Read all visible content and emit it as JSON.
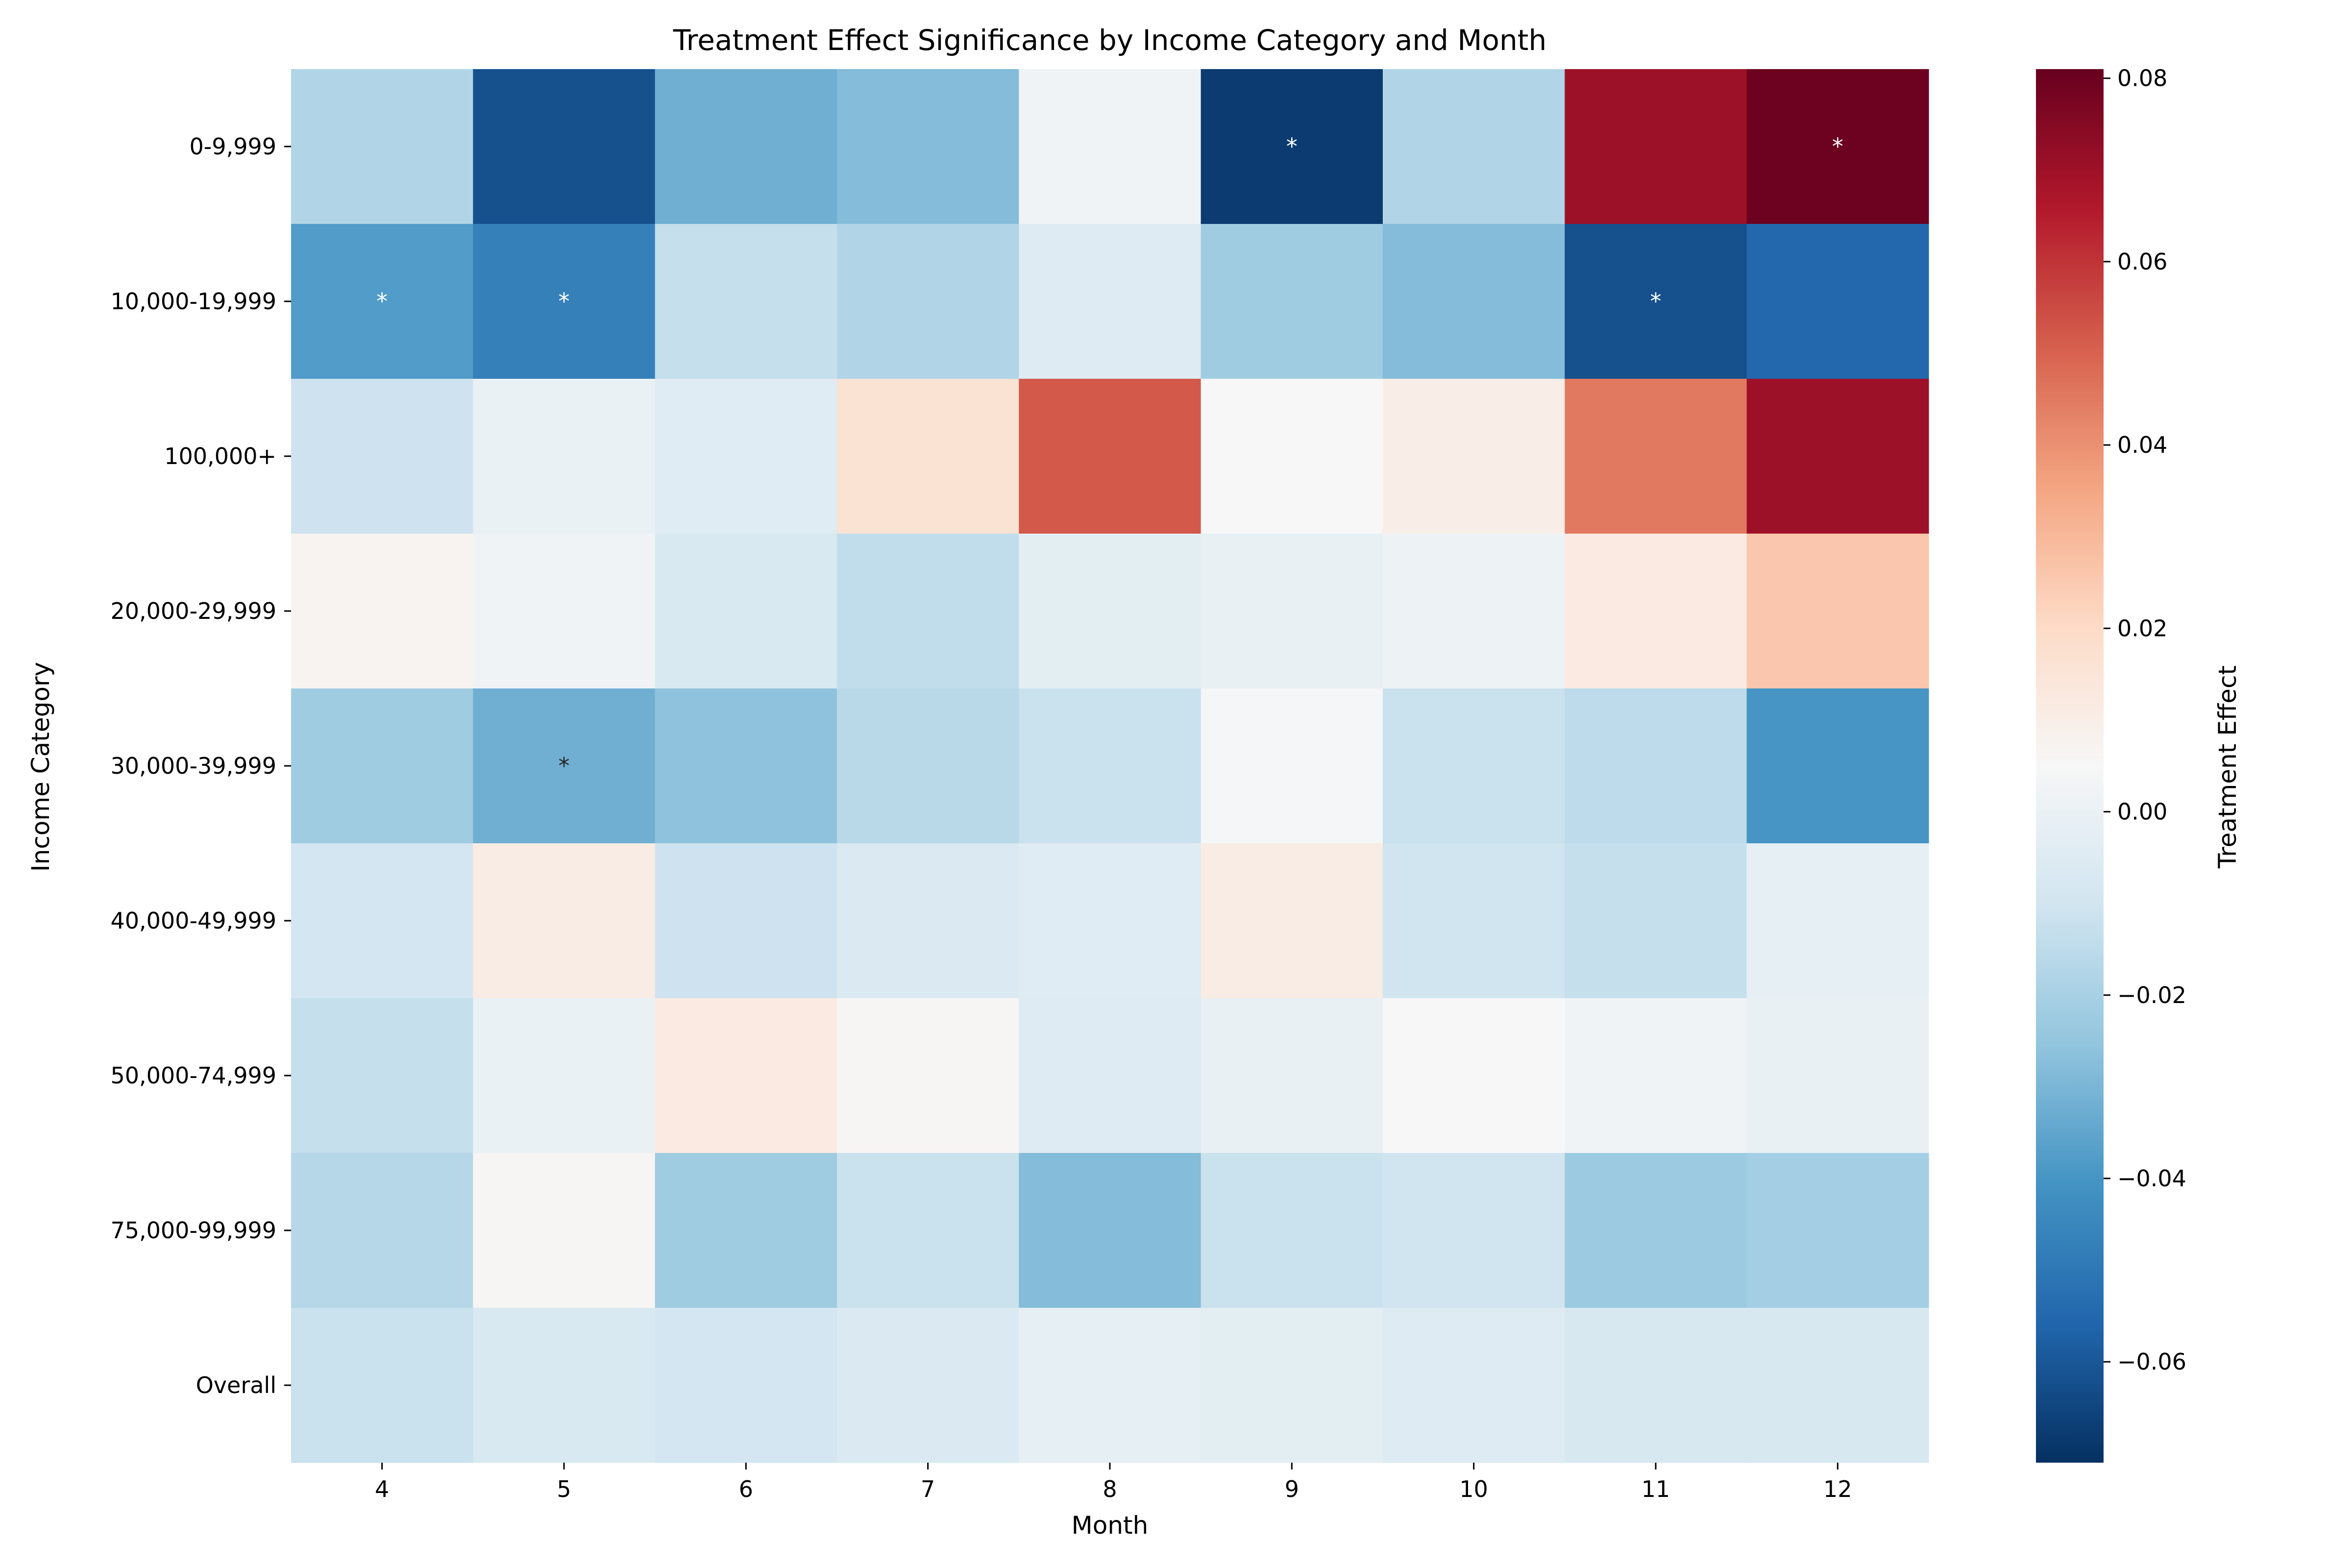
{
  "chart_data": {
    "type": "heatmap",
    "title": "Treatment Effect Significance by Income Category and Month",
    "xlabel": "Month",
    "ylabel": "Income Category",
    "x": [
      "4",
      "5",
      "6",
      "7",
      "8",
      "9",
      "10",
      "11",
      "12"
    ],
    "y": [
      "0-9,999",
      "10,000-19,999",
      "100,000+",
      "20,000-29,999",
      "30,000-39,999",
      "40,000-49,999",
      "50,000-74,999",
      "75,000-99,999",
      "Overall"
    ],
    "values": [
      [
        -0.018,
        -0.062,
        -0.032,
        -0.028,
        0.002,
        -0.068,
        -0.018,
        0.07,
        0.08
      ],
      [
        -0.038,
        -0.047,
        -0.013,
        -0.018,
        -0.005,
        -0.022,
        -0.028,
        -0.062,
        -0.055
      ],
      [
        -0.011,
        0.0,
        -0.004,
        0.016,
        0.052,
        0.005,
        0.01,
        0.045,
        0.07
      ],
      [
        0.007,
        0.002,
        -0.007,
        -0.014,
        -0.003,
        -0.001,
        0.001,
        0.012,
        0.026
      ],
      [
        -0.022,
        -0.032,
        -0.026,
        -0.016,
        -0.012,
        0.004,
        -0.012,
        -0.015,
        -0.04
      ],
      [
        -0.009,
        0.011,
        -0.011,
        -0.006,
        -0.004,
        0.011,
        -0.01,
        -0.013,
        -0.002
      ],
      [
        -0.013,
        0.0,
        0.012,
        0.006,
        -0.005,
        -0.001,
        0.005,
        0.002,
        -0.001
      ],
      [
        -0.017,
        0.006,
        -0.022,
        -0.012,
        -0.028,
        -0.012,
        -0.01,
        -0.023,
        -0.021
      ],
      [
        -0.012,
        -0.007,
        -0.009,
        -0.006,
        -0.002,
        -0.003,
        -0.005,
        -0.008,
        -0.008
      ]
    ],
    "significant": [
      [
        false,
        false,
        false,
        false,
        false,
        true,
        false,
        false,
        true
      ],
      [
        true,
        true,
        false,
        false,
        false,
        false,
        false,
        true,
        false
      ],
      [
        false,
        false,
        false,
        false,
        false,
        false,
        false,
        false,
        false
      ],
      [
        false,
        false,
        false,
        false,
        false,
        false,
        false,
        false,
        false
      ],
      [
        false,
        true,
        false,
        false,
        false,
        false,
        false,
        false,
        false
      ],
      [
        false,
        false,
        false,
        false,
        false,
        false,
        false,
        false,
        false
      ],
      [
        false,
        false,
        false,
        false,
        false,
        false,
        false,
        false,
        false
      ],
      [
        false,
        false,
        false,
        false,
        false,
        false,
        false,
        false,
        false
      ],
      [
        false,
        false,
        false,
        false,
        false,
        false,
        false,
        false,
        false
      ]
    ],
    "significance_marker": "*",
    "vmin": -0.071,
    "vmax": 0.081,
    "colormap": "RdBu_r",
    "colorbar": {
      "label": "Treatment Effect",
      "ticks": [
        0.08,
        0.06,
        0.04,
        0.02,
        0.0,
        -0.02,
        -0.04,
        -0.06
      ],
      "tick_labels": [
        "0.08",
        "0.06",
        "0.04",
        "0.02",
        "0.00",
        "−0.02",
        "−0.04",
        "−0.06"
      ]
    },
    "grid": false,
    "legend": "colorbar-right"
  }
}
